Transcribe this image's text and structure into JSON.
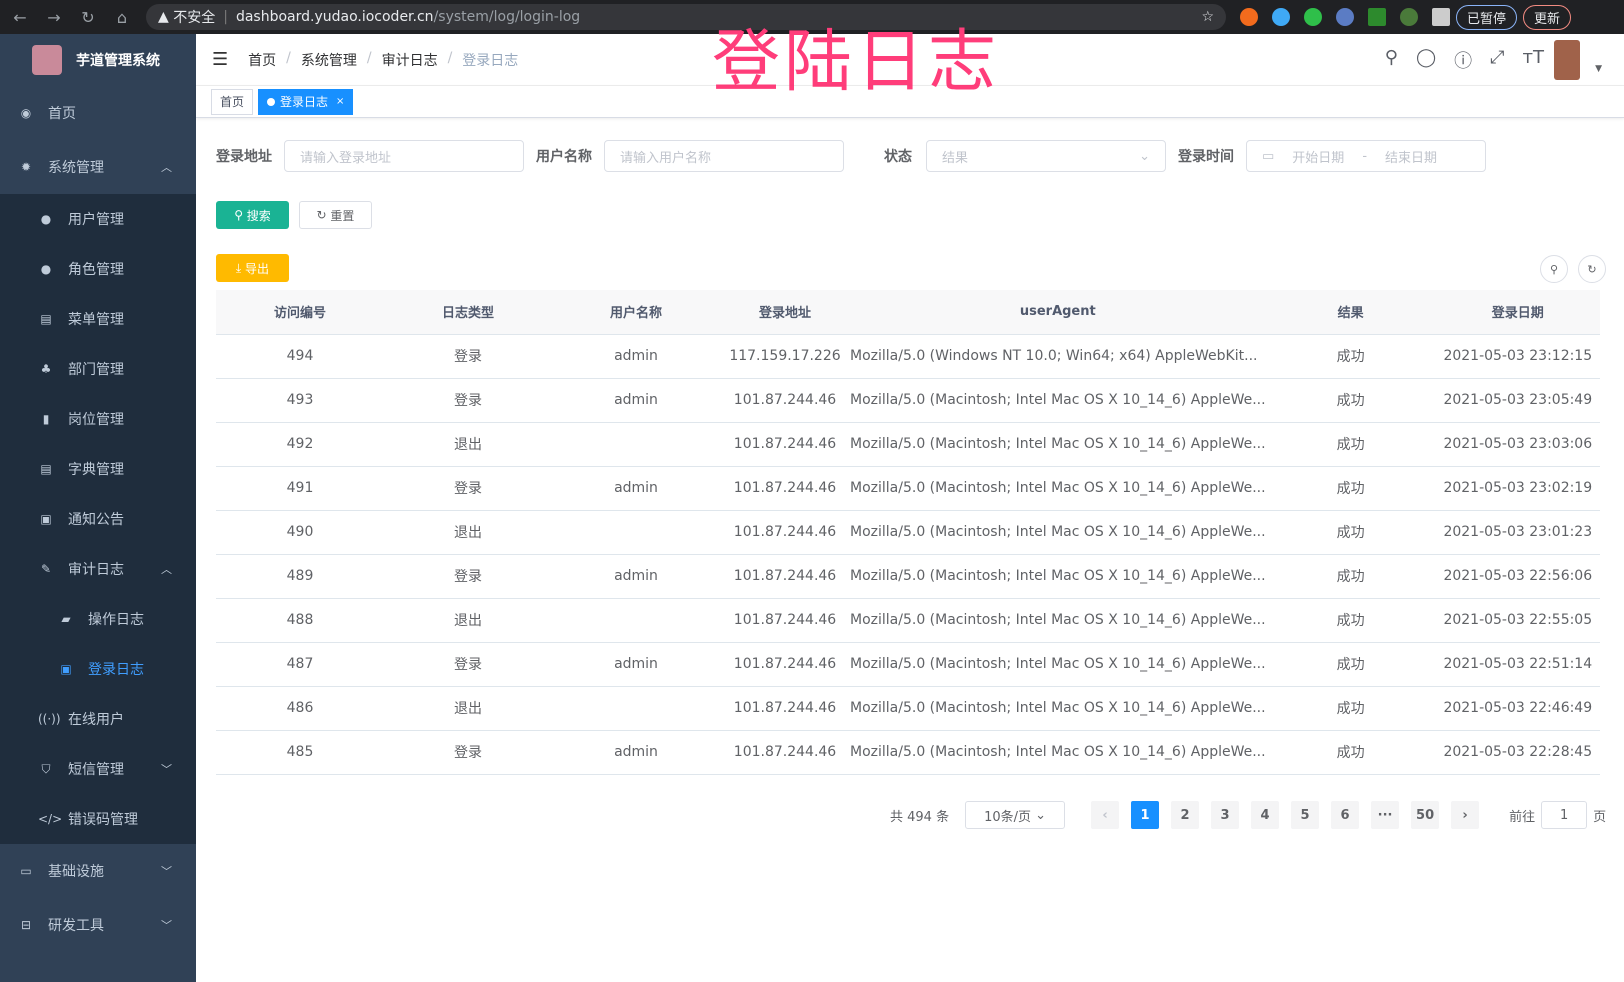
{
  "browser": {
    "insecure": "不安全",
    "url_host": "dashboard.yudao.iocoder.cn",
    "url_path": "/system/log/login-log",
    "paused": "已暂停",
    "update": "更新"
  },
  "overlay_title": "登陆日志",
  "sidebar": {
    "title": "芋道管理系统",
    "items": [
      {
        "label": "首页",
        "icon": "dashboard-icon"
      },
      {
        "label": "系统管理",
        "icon": "gear-icon",
        "children": [
          {
            "label": "用户管理",
            "icon": "user-icon"
          },
          {
            "label": "角色管理",
            "icon": "role-icon"
          },
          {
            "label": "菜单管理",
            "icon": "menu-icon"
          },
          {
            "label": "部门管理",
            "icon": "tree-icon"
          },
          {
            "label": "岗位管理",
            "icon": "post-icon"
          },
          {
            "label": "字典管理",
            "icon": "dict-icon"
          },
          {
            "label": "通知公告",
            "icon": "message-icon"
          },
          {
            "label": "审计日志",
            "icon": "edit-icon",
            "children": [
              {
                "label": "操作日志",
                "icon": "form-icon"
              },
              {
                "label": "登录日志",
                "icon": "logininfor-icon",
                "active": true
              }
            ]
          },
          {
            "label": "在线用户",
            "icon": "online-icon"
          },
          {
            "label": "短信管理",
            "icon": "shield-icon"
          },
          {
            "label": "错误码管理",
            "icon": "code-icon"
          }
        ]
      },
      {
        "label": "基础设施",
        "icon": "monitor-icon"
      },
      {
        "label": "研发工具",
        "icon": "tool-icon"
      }
    ]
  },
  "navbar": {
    "breadcrumb": [
      "首页",
      "系统管理",
      "审计日志",
      "登录日志"
    ]
  },
  "tags": [
    {
      "label": "首页"
    },
    {
      "label": "登录日志",
      "active": true
    }
  ],
  "search": {
    "ip_label": "登录地址",
    "ip_placeholder": "请输入登录地址",
    "user_label": "用户名称",
    "user_placeholder": "请输入用户名称",
    "status_label": "状态",
    "status_placeholder": "结果",
    "time_label": "登录时间",
    "start_placeholder": "开始日期",
    "range_sep": "-",
    "end_placeholder": "结束日期",
    "search_btn": "搜索",
    "reset_btn": "重置",
    "export_btn": "导出"
  },
  "table": {
    "headers": [
      "访问编号",
      "日志类型",
      "用户名称",
      "登录地址",
      "userAgent",
      "结果",
      "登录日期"
    ],
    "rows": [
      [
        "494",
        "登录",
        "admin",
        "117.159.17.226",
        "Mozilla/5.0 (Windows NT 10.0; Win64; x64) AppleWebKit...",
        "成功",
        "2021-05-03 23:12:15"
      ],
      [
        "493",
        "登录",
        "admin",
        "101.87.244.46",
        "Mozilla/5.0 (Macintosh; Intel Mac OS X 10_14_6) AppleWe...",
        "成功",
        "2021-05-03 23:05:49"
      ],
      [
        "492",
        "退出",
        "",
        "101.87.244.46",
        "Mozilla/5.0 (Macintosh; Intel Mac OS X 10_14_6) AppleWe...",
        "成功",
        "2021-05-03 23:03:06"
      ],
      [
        "491",
        "登录",
        "admin",
        "101.87.244.46",
        "Mozilla/5.0 (Macintosh; Intel Mac OS X 10_14_6) AppleWe...",
        "成功",
        "2021-05-03 23:02:19"
      ],
      [
        "490",
        "退出",
        "",
        "101.87.244.46",
        "Mozilla/5.0 (Macintosh; Intel Mac OS X 10_14_6) AppleWe...",
        "成功",
        "2021-05-03 23:01:23"
      ],
      [
        "489",
        "登录",
        "admin",
        "101.87.244.46",
        "Mozilla/5.0 (Macintosh; Intel Mac OS X 10_14_6) AppleWe...",
        "成功",
        "2021-05-03 22:56:06"
      ],
      [
        "488",
        "退出",
        "",
        "101.87.244.46",
        "Mozilla/5.0 (Macintosh; Intel Mac OS X 10_14_6) AppleWe...",
        "成功",
        "2021-05-03 22:55:05"
      ],
      [
        "487",
        "登录",
        "admin",
        "101.87.244.46",
        "Mozilla/5.0 (Macintosh; Intel Mac OS X 10_14_6) AppleWe...",
        "成功",
        "2021-05-03 22:51:14"
      ],
      [
        "486",
        "退出",
        "",
        "101.87.244.46",
        "Mozilla/5.0 (Macintosh; Intel Mac OS X 10_14_6) AppleWe...",
        "成功",
        "2021-05-03 22:46:49"
      ],
      [
        "485",
        "登录",
        "admin",
        "101.87.244.46",
        "Mozilla/5.0 (Macintosh; Intel Mac OS X 10_14_6) AppleWe...",
        "成功",
        "2021-05-03 22:28:45"
      ]
    ]
  },
  "pagination": {
    "total": "共 494 条",
    "page_size": "10条/页",
    "pages": [
      "1",
      "2",
      "3",
      "4",
      "5",
      "6",
      "···",
      "50"
    ],
    "current": "1",
    "goto_label": "前往",
    "goto_value": "1",
    "goto_suffix": "页"
  },
  "colors": {
    "sidebar": "#304156",
    "submenu": "#1f2d3d",
    "primary": "#1890ff",
    "search": "#1ab394",
    "export": "#ffba00",
    "overlay": "#ff3d7a"
  }
}
